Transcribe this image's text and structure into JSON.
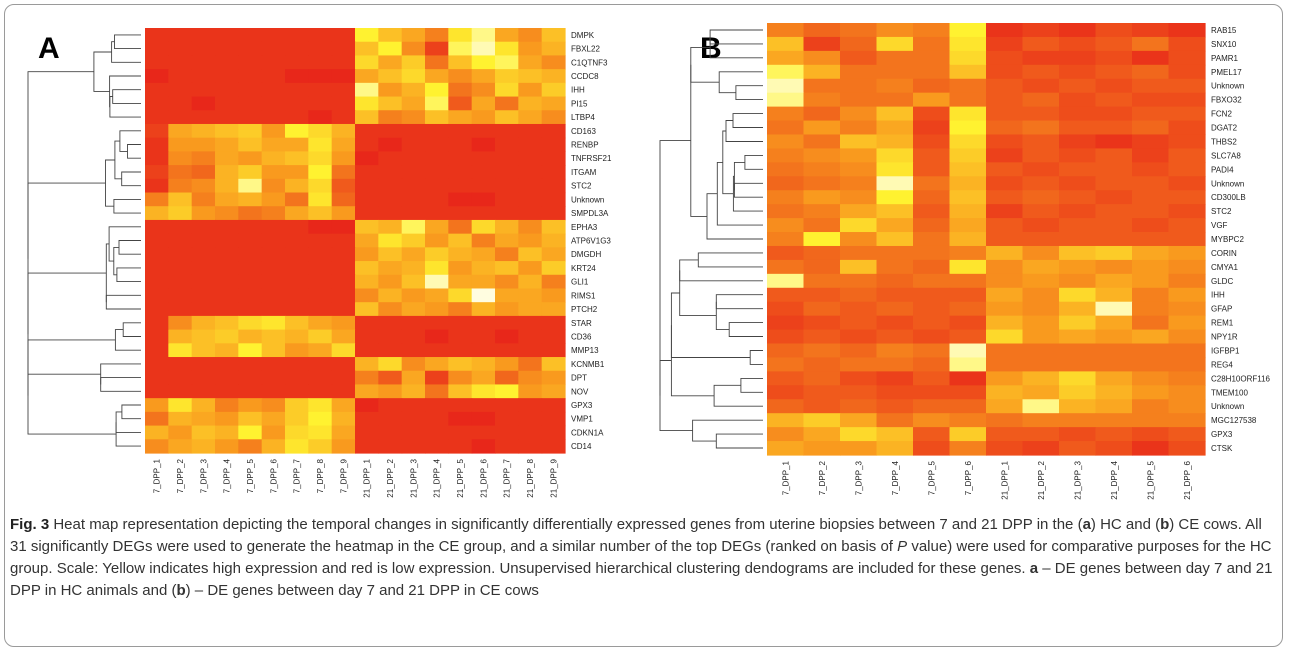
{
  "chart_data": [
    {
      "type": "heatmap",
      "panel": "A",
      "rows": [
        "DMPK",
        "FBXL22",
        "C1QTNF3",
        "CCDC8",
        "IHH",
        "PI15",
        "LTBP4",
        "CD163",
        "RENBP",
        "TNFRSF21",
        "ITGAM",
        "STC2",
        "Unknown",
        "SMPDL3A",
        "EPHA3",
        "ATP6V1G3",
        "DMGDH",
        "KRT24",
        "GLI1",
        "RIMS1",
        "PTCH2",
        "STAR",
        "CD36",
        "MMP13",
        "KCNMB1",
        "DPT",
        "NOV",
        "GPX3",
        "VMP1",
        "CDKN1A",
        "CD14"
      ],
      "columns": [
        "7_DPP_1",
        "7_DPP_2",
        "7_DPP_3",
        "7_DPP_4",
        "7_DPP_5",
        "7_DPP_6",
        "7_DPP_7",
        "7_DPP_8",
        "7_DPP_9",
        "21_DPP_1",
        "21_DPP_2",
        "21_DPP_3",
        "21_DPP_4",
        "21_DPP_5",
        "21_DPP_6",
        "21_DPP_7",
        "21_DPP_8",
        "21_DPP_9"
      ],
      "values": [
        [
          0.05,
          0.05,
          0.05,
          0.05,
          0.05,
          0.05,
          0.05,
          0.05,
          0.05,
          0.8,
          0.6,
          0.5,
          0.35,
          0.75,
          0.9,
          0.5,
          0.4,
          0.6
        ],
        [
          0.05,
          0.05,
          0.05,
          0.05,
          0.05,
          0.05,
          0.05,
          0.05,
          0.05,
          0.6,
          0.8,
          0.4,
          0.1,
          0.85,
          0.95,
          0.75,
          0.45,
          0.55
        ],
        [
          0.05,
          0.05,
          0.05,
          0.05,
          0.05,
          0.05,
          0.05,
          0.05,
          0.05,
          0.7,
          0.5,
          0.65,
          0.3,
          0.6,
          0.8,
          0.85,
          0.5,
          0.4
        ],
        [
          0.0,
          0.05,
          0.05,
          0.05,
          0.05,
          0.05,
          0.0,
          0.0,
          0.0,
          0.5,
          0.6,
          0.7,
          0.5,
          0.4,
          0.5,
          0.65,
          0.6,
          0.55
        ],
        [
          0.05,
          0.05,
          0.05,
          0.05,
          0.05,
          0.05,
          0.05,
          0.05,
          0.05,
          0.9,
          0.45,
          0.55,
          0.8,
          0.3,
          0.4,
          0.7,
          0.45,
          0.65
        ],
        [
          0.05,
          0.05,
          0.0,
          0.05,
          0.05,
          0.05,
          0.05,
          0.05,
          0.05,
          0.75,
          0.6,
          0.5,
          0.85,
          0.2,
          0.5,
          0.3,
          0.55,
          0.5
        ],
        [
          0.05,
          0.05,
          0.05,
          0.05,
          0.05,
          0.05,
          0.05,
          0.0,
          0.05,
          0.6,
          0.35,
          0.4,
          0.6,
          0.5,
          0.45,
          0.6,
          0.5,
          0.4
        ],
        [
          0.1,
          0.5,
          0.55,
          0.6,
          0.65,
          0.45,
          0.8,
          0.7,
          0.55,
          0.05,
          0.05,
          0.05,
          0.05,
          0.05,
          0.05,
          0.05,
          0.05,
          0.05
        ],
        [
          0.05,
          0.45,
          0.45,
          0.5,
          0.6,
          0.5,
          0.5,
          0.75,
          0.5,
          0.05,
          0.0,
          0.05,
          0.05,
          0.05,
          0.0,
          0.05,
          0.05,
          0.05
        ],
        [
          0.05,
          0.4,
          0.35,
          0.5,
          0.45,
          0.55,
          0.6,
          0.7,
          0.45,
          0.0,
          0.05,
          0.05,
          0.05,
          0.05,
          0.05,
          0.05,
          0.05,
          0.05
        ],
        [
          0.1,
          0.3,
          0.25,
          0.55,
          0.65,
          0.45,
          0.45,
          0.8,
          0.3,
          0.05,
          0.05,
          0.05,
          0.05,
          0.05,
          0.05,
          0.05,
          0.05,
          0.05
        ],
        [
          0.05,
          0.35,
          0.4,
          0.55,
          0.9,
          0.4,
          0.55,
          0.7,
          0.2,
          0.05,
          0.05,
          0.05,
          0.05,
          0.05,
          0.05,
          0.05,
          0.05,
          0.05
        ],
        [
          0.35,
          0.6,
          0.35,
          0.5,
          0.55,
          0.45,
          0.3,
          0.75,
          0.25,
          0.05,
          0.05,
          0.05,
          0.05,
          0.0,
          0.0,
          0.05,
          0.05,
          0.05
        ],
        [
          0.55,
          0.65,
          0.45,
          0.4,
          0.3,
          0.35,
          0.5,
          0.6,
          0.45,
          0.05,
          0.05,
          0.05,
          0.05,
          0.05,
          0.05,
          0.05,
          0.05,
          0.05
        ],
        [
          0.05,
          0.05,
          0.05,
          0.05,
          0.05,
          0.05,
          0.05,
          0.0,
          0.0,
          0.6,
          0.55,
          0.85,
          0.5,
          0.3,
          0.7,
          0.55,
          0.4,
          0.6
        ],
        [
          0.05,
          0.05,
          0.05,
          0.05,
          0.05,
          0.05,
          0.05,
          0.05,
          0.05,
          0.5,
          0.75,
          0.65,
          0.45,
          0.6,
          0.35,
          0.5,
          0.45,
          0.55
        ],
        [
          0.05,
          0.05,
          0.05,
          0.05,
          0.05,
          0.05,
          0.05,
          0.05,
          0.05,
          0.45,
          0.6,
          0.5,
          0.65,
          0.55,
          0.5,
          0.35,
          0.6,
          0.5
        ],
        [
          0.05,
          0.05,
          0.05,
          0.05,
          0.05,
          0.05,
          0.05,
          0.05,
          0.05,
          0.6,
          0.5,
          0.55,
          0.75,
          0.45,
          0.55,
          0.6,
          0.45,
          0.65
        ],
        [
          0.05,
          0.05,
          0.05,
          0.05,
          0.05,
          0.05,
          0.05,
          0.05,
          0.05,
          0.55,
          0.45,
          0.6,
          0.95,
          0.5,
          0.5,
          0.4,
          0.55,
          0.35
        ],
        [
          0.05,
          0.05,
          0.05,
          0.05,
          0.05,
          0.05,
          0.05,
          0.05,
          0.05,
          0.4,
          0.55,
          0.45,
          0.5,
          0.7,
          1.0,
          0.5,
          0.5,
          0.45
        ],
        [
          0.05,
          0.05,
          0.05,
          0.05,
          0.05,
          0.05,
          0.05,
          0.05,
          0.05,
          0.6,
          0.4,
          0.5,
          0.45,
          0.35,
          0.55,
          0.45,
          0.5,
          0.5
        ],
        [
          0.05,
          0.4,
          0.55,
          0.6,
          0.7,
          0.75,
          0.6,
          0.5,
          0.45,
          0.05,
          0.05,
          0.05,
          0.05,
          0.05,
          0.05,
          0.05,
          0.05,
          0.05
        ],
        [
          0.05,
          0.55,
          0.6,
          0.65,
          0.55,
          0.6,
          0.55,
          0.65,
          0.5,
          0.05,
          0.05,
          0.05,
          0.0,
          0.05,
          0.05,
          0.0,
          0.05,
          0.05
        ],
        [
          0.05,
          0.75,
          0.6,
          0.55,
          0.8,
          0.6,
          0.45,
          0.5,
          0.7,
          0.05,
          0.05,
          0.05,
          0.05,
          0.05,
          0.05,
          0.05,
          0.05,
          0.05
        ],
        [
          0.05,
          0.05,
          0.05,
          0.05,
          0.05,
          0.05,
          0.05,
          0.05,
          0.05,
          0.55,
          0.7,
          0.4,
          0.5,
          0.6,
          0.55,
          0.45,
          0.3,
          0.6
        ],
        [
          0.05,
          0.05,
          0.05,
          0.05,
          0.05,
          0.05,
          0.05,
          0.05,
          0.05,
          0.35,
          0.2,
          0.5,
          0.1,
          0.4,
          0.5,
          0.25,
          0.4,
          0.45
        ],
        [
          0.05,
          0.05,
          0.05,
          0.05,
          0.05,
          0.05,
          0.05,
          0.05,
          0.05,
          0.5,
          0.45,
          0.55,
          0.3,
          0.6,
          0.75,
          0.8,
          0.45,
          0.5
        ],
        [
          0.45,
          0.75,
          0.55,
          0.35,
          0.45,
          0.4,
          0.65,
          0.75,
          0.5,
          0.0,
          0.05,
          0.05,
          0.05,
          0.05,
          0.05,
          0.05,
          0.05,
          0.05
        ],
        [
          0.3,
          0.55,
          0.5,
          0.45,
          0.6,
          0.5,
          0.65,
          0.8,
          0.55,
          0.05,
          0.05,
          0.05,
          0.05,
          0.0,
          0.0,
          0.05,
          0.05,
          0.05
        ],
        [
          0.55,
          0.45,
          0.6,
          0.55,
          0.8,
          0.45,
          0.7,
          0.75,
          0.5,
          0.05,
          0.05,
          0.05,
          0.05,
          0.05,
          0.05,
          0.05,
          0.05,
          0.05
        ],
        [
          0.4,
          0.5,
          0.55,
          0.45,
          0.35,
          0.55,
          0.75,
          0.65,
          0.45,
          0.05,
          0.05,
          0.05,
          0.05,
          0.05,
          0.0,
          0.05,
          0.05,
          0.05
        ]
      ],
      "color_scale": {
        "low": "#e8271a",
        "mid": "#f99a1e",
        "high": "#fff230",
        "max": "#fffde0"
      }
    },
    {
      "type": "heatmap",
      "panel": "B",
      "rows": [
        "RAB15",
        "SNX10",
        "PAMR1",
        "PMEL17",
        "Unknown",
        "FBXO32",
        "FCN2",
        "DGAT2",
        "THBS2",
        "SLC7A8",
        "PADI4",
        "Unknown",
        "CD300LB",
        "STC2",
        "VGF",
        "MYBPC2",
        "CORIN",
        "CMYA1",
        "GLDC",
        "IHH",
        "GFAP",
        "REM1",
        "NPY1R",
        "IGFBP1",
        "REG4",
        "C28H10ORF116",
        "TMEM100",
        "Unknown",
        "MGC127538",
        "GPX3",
        "CTSK"
      ],
      "columns": [
        "7_DPP_1",
        "7_DPP_2",
        "7_DPP_3",
        "7_DPP_4",
        "7_DPP_5",
        "7_DPP_6",
        "21_DPP_1",
        "21_DPP_2",
        "21_DPP_3",
        "21_DPP_4",
        "21_DPP_5",
        "21_DPP_6"
      ],
      "values": [
        [
          0.35,
          0.25,
          0.3,
          0.4,
          0.35,
          0.8,
          0.05,
          0.1,
          0.05,
          0.15,
          0.1,
          0.05
        ],
        [
          0.6,
          0.1,
          0.25,
          0.7,
          0.3,
          0.75,
          0.1,
          0.2,
          0.15,
          0.2,
          0.3,
          0.15
        ],
        [
          0.5,
          0.4,
          0.2,
          0.3,
          0.3,
          0.7,
          0.15,
          0.1,
          0.1,
          0.15,
          0.05,
          0.15
        ],
        [
          0.85,
          0.55,
          0.3,
          0.3,
          0.3,
          0.6,
          0.15,
          0.2,
          0.15,
          0.2,
          0.25,
          0.15
        ],
        [
          0.95,
          0.3,
          0.3,
          0.35,
          0.25,
          0.3,
          0.2,
          0.15,
          0.2,
          0.15,
          0.2,
          0.2
        ],
        [
          0.9,
          0.35,
          0.3,
          0.3,
          0.45,
          0.3,
          0.2,
          0.25,
          0.15,
          0.2,
          0.15,
          0.15
        ],
        [
          0.35,
          0.25,
          0.4,
          0.6,
          0.15,
          0.75,
          0.2,
          0.2,
          0.15,
          0.15,
          0.2,
          0.2
        ],
        [
          0.3,
          0.45,
          0.35,
          0.5,
          0.1,
          0.8,
          0.25,
          0.3,
          0.2,
          0.2,
          0.25,
          0.15
        ],
        [
          0.4,
          0.3,
          0.6,
          0.55,
          0.15,
          0.7,
          0.15,
          0.2,
          0.1,
          0.05,
          0.1,
          0.15
        ],
        [
          0.35,
          0.4,
          0.45,
          0.7,
          0.2,
          0.65,
          0.1,
          0.2,
          0.15,
          0.2,
          0.1,
          0.2
        ],
        [
          0.3,
          0.35,
          0.4,
          0.75,
          0.2,
          0.6,
          0.2,
          0.15,
          0.2,
          0.2,
          0.15,
          0.2
        ],
        [
          0.25,
          0.3,
          0.35,
          0.95,
          0.3,
          0.55,
          0.15,
          0.2,
          0.15,
          0.2,
          0.2,
          0.15
        ],
        [
          0.35,
          0.45,
          0.4,
          0.8,
          0.25,
          0.6,
          0.2,
          0.25,
          0.2,
          0.15,
          0.2,
          0.2
        ],
        [
          0.3,
          0.35,
          0.5,
          0.6,
          0.2,
          0.55,
          0.1,
          0.2,
          0.15,
          0.2,
          0.2,
          0.15
        ],
        [
          0.4,
          0.3,
          0.7,
          0.5,
          0.25,
          0.5,
          0.2,
          0.15,
          0.2,
          0.2,
          0.15,
          0.2
        ],
        [
          0.35,
          0.8,
          0.4,
          0.6,
          0.3,
          0.55,
          0.2,
          0.2,
          0.2,
          0.2,
          0.2,
          0.2
        ],
        [
          0.2,
          0.25,
          0.3,
          0.3,
          0.3,
          0.35,
          0.55,
          0.4,
          0.6,
          0.65,
          0.5,
          0.45
        ],
        [
          0.3,
          0.25,
          0.6,
          0.3,
          0.25,
          0.75,
          0.4,
          0.5,
          0.45,
          0.4,
          0.45,
          0.4
        ],
        [
          0.9,
          0.3,
          0.3,
          0.25,
          0.3,
          0.3,
          0.4,
          0.45,
          0.4,
          0.5,
          0.45,
          0.35
        ],
        [
          0.2,
          0.2,
          0.25,
          0.2,
          0.2,
          0.2,
          0.5,
          0.4,
          0.7,
          0.55,
          0.35,
          0.45
        ],
        [
          0.15,
          0.25,
          0.2,
          0.25,
          0.2,
          0.25,
          0.45,
          0.4,
          0.55,
          0.95,
          0.35,
          0.4
        ],
        [
          0.1,
          0.15,
          0.2,
          0.15,
          0.2,
          0.15,
          0.55,
          0.45,
          0.65,
          0.5,
          0.3,
          0.45
        ],
        [
          0.15,
          0.2,
          0.15,
          0.2,
          0.15,
          0.2,
          0.7,
          0.45,
          0.5,
          0.45,
          0.5,
          0.4
        ],
        [
          0.25,
          0.3,
          0.25,
          0.35,
          0.3,
          0.95,
          0.3,
          0.3,
          0.3,
          0.3,
          0.3,
          0.3
        ],
        [
          0.3,
          0.25,
          0.3,
          0.3,
          0.25,
          0.9,
          0.3,
          0.3,
          0.3,
          0.3,
          0.3,
          0.3
        ],
        [
          0.2,
          0.25,
          0.15,
          0.1,
          0.2,
          0.05,
          0.45,
          0.55,
          0.7,
          0.5,
          0.4,
          0.35
        ],
        [
          0.15,
          0.2,
          0.2,
          0.15,
          0.15,
          0.15,
          0.55,
          0.5,
          0.65,
          0.55,
          0.45,
          0.4
        ],
        [
          0.25,
          0.2,
          0.25,
          0.2,
          0.25,
          0.25,
          0.5,
          0.9,
          0.55,
          0.5,
          0.35,
          0.4
        ],
        [
          0.55,
          0.65,
          0.5,
          0.3,
          0.4,
          0.35,
          0.3,
          0.35,
          0.35,
          0.35,
          0.35,
          0.35
        ],
        [
          0.4,
          0.5,
          0.7,
          0.6,
          0.2,
          0.65,
          0.2,
          0.2,
          0.15,
          0.2,
          0.15,
          0.2
        ],
        [
          0.5,
          0.45,
          0.45,
          0.55,
          0.15,
          0.35,
          0.15,
          0.1,
          0.2,
          0.15,
          0.05,
          0.15
        ]
      ],
      "color_scale": {
        "low": "#e8271a",
        "mid": "#f99a1e",
        "high": "#fff230",
        "max": "#fffde0"
      }
    }
  ],
  "panel_letters": {
    "a": "A",
    "b": "B"
  },
  "caption": {
    "fig_label": "Fig. 3",
    "segments": [
      " Heat map representation depicting the temporal changes in significantly differentially expressed genes from uterine biopsies between 7 and 21 DPP in the (",
      "a",
      ") HC and (",
      "b",
      ") CE cows. All 31 significantly DEGs were used to generate the heatmap in the CE group, and a similar number of the top DEGs (ranked on basis of ",
      "P",
      " value) were used for comparative purposes for the HC group. Scale: Yellow indicates high expression and red is low expression. Unsupervised hierarchical clustering dendograms are included for these genes. ",
      "a",
      " – DE genes between day 7 and 21 DPP in HC animals and (",
      "b",
      ") – DE genes between day 7 and 21 DPP in CE cows"
    ]
  }
}
